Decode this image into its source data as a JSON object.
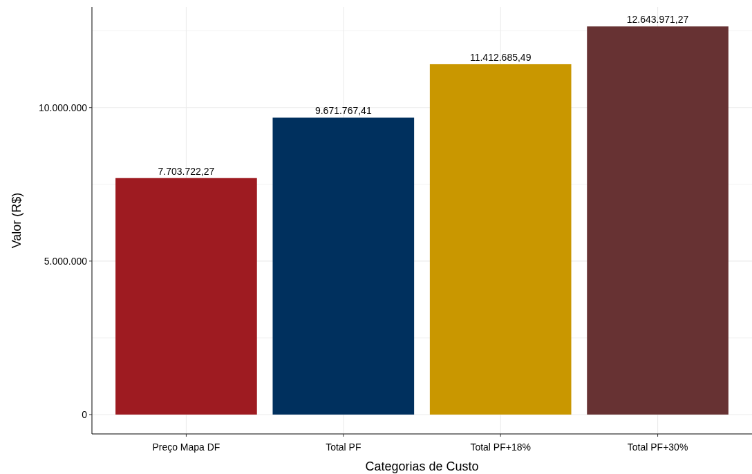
{
  "chart_data": {
    "type": "bar",
    "xlabel": "Categorias de Custo",
    "ylabel": "Valor (R$)",
    "categories": [
      "Preço Mapa DF",
      "Total PF",
      "Total PF+18%",
      "Total PF+30%"
    ],
    "values": [
      7703722.27,
      9671767.41,
      11412685.49,
      12643971.27
    ],
    "colors": [
      "#9e1b21",
      "#00305e",
      "#c99700",
      "#673233"
    ],
    "value_labels": [
      "7.703.722,27",
      "9.671.767,41",
      "11.412.685,49",
      "12.643.971,27"
    ],
    "ylim": [
      -630000,
      13280000
    ],
    "yticks": [
      {
        "value": 0,
        "label": "0"
      },
      {
        "value": 2500000,
        "label": null
      },
      {
        "value": 5000000,
        "label": "5.000.000"
      },
      {
        "value": 7500000,
        "label": null
      },
      {
        "value": 10000000,
        "label": "10.000.000"
      },
      {
        "value": 12500000,
        "label": null
      }
    ],
    "grid": true
  }
}
